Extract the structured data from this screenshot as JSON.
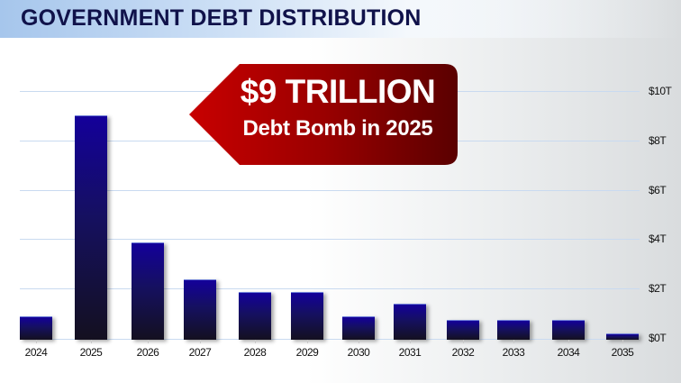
{
  "header": {
    "title": "GOVERNMENT DEBT DISTRIBUTION"
  },
  "callout": {
    "line1": "$9 TRILLION",
    "line2": "Debt Bomb in 2025",
    "color_start": "#c00000",
    "color_end": "#5e0000"
  },
  "axis": {
    "y_ticks": [
      "$10T",
      "$8T",
      "$6T",
      "$4T",
      "$2T",
      "$0T"
    ],
    "x_ticks": [
      "2024",
      "2025",
      "2026",
      "2027",
      "2028",
      "2029",
      "2030",
      "2031",
      "2032",
      "2033",
      "2034",
      "2035"
    ]
  },
  "colors": {
    "bar_top": "#14009a",
    "bar_bottom": "#141020",
    "gridline": "#c9daf0",
    "title": "#10124a"
  },
  "chart_data": {
    "type": "bar",
    "title": "GOVERNMENT DEBT DISTRIBUTION",
    "xlabel": "",
    "ylabel": "",
    "categories": [
      "2024",
      "2025",
      "2026",
      "2027",
      "2028",
      "2029",
      "2030",
      "2031",
      "2032",
      "2033",
      "2034",
      "2035"
    ],
    "values": [
      0.9,
      9.0,
      3.9,
      2.4,
      1.9,
      1.9,
      0.9,
      1.4,
      0.75,
      0.75,
      0.75,
      0.2
    ],
    "unit": "Trillion USD",
    "ylim": [
      0,
      10
    ],
    "y_tick_labels": [
      "$0T",
      "$2T",
      "$4T",
      "$6T",
      "$8T",
      "$10T"
    ],
    "y_axis_position": "right",
    "grid": true,
    "legend": null,
    "annotations": [
      {
        "text": "$9 TRILLION\nDebt Bomb in 2025",
        "points_to": "2025"
      }
    ]
  }
}
